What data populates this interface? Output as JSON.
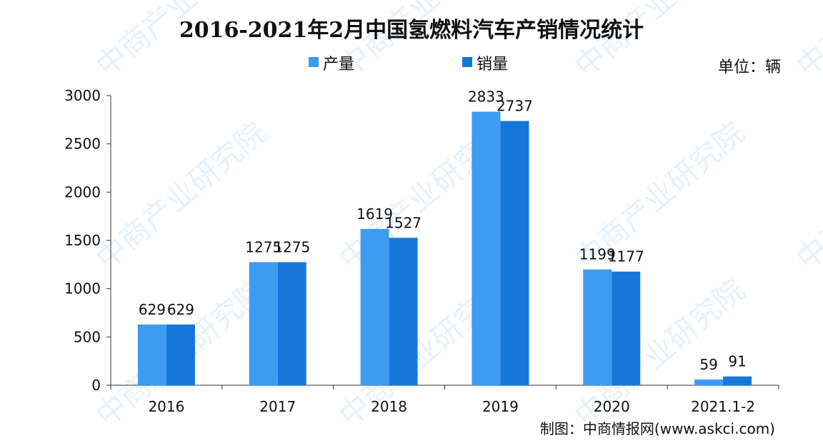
{
  "chart_data": {
    "type": "bar",
    "title": "2016-2021年2月中国氢燃料汽车产销情况统计",
    "unit_label": "单位：辆",
    "source_label": "制图：中商情报网(www.askci.com)",
    "categories": [
      "2016",
      "2017",
      "2018",
      "2019",
      "2020",
      "2021.1-2"
    ],
    "series": [
      {
        "name": "产量",
        "color": "#3d9cf0",
        "values": [
          629,
          1275,
          1619,
          2833,
          1199,
          59
        ]
      },
      {
        "name": "销量",
        "color": "#1677d9",
        "values": [
          629,
          1275,
          1527,
          2737,
          1177,
          91
        ]
      }
    ],
    "yticks": [
      0,
      500,
      1000,
      1500,
      2000,
      2500,
      3000
    ],
    "ylim": [
      0,
      3000
    ],
    "legend_position": "top-center",
    "grid": false,
    "watermark": "中商产业研究院"
  }
}
